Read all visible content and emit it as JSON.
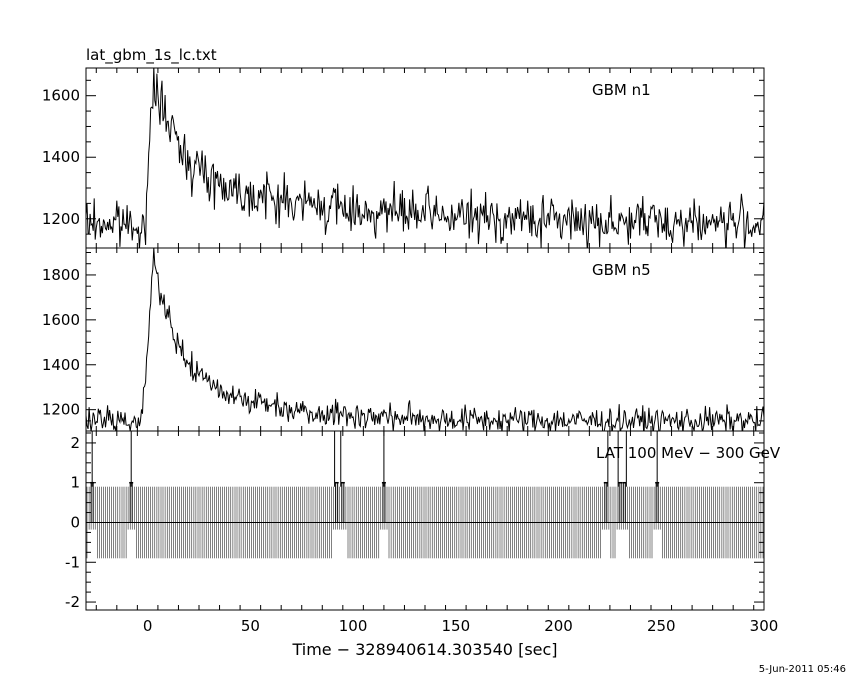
{
  "file_title": "lat_gbm_1s_lc.txt",
  "date_stamp": "5-Jun-2011 05:46",
  "chart_data": {
    "type": "line",
    "xlabel": "Time − 328940614.303540 [sec]",
    "xlim": [
      -30,
      300
    ],
    "x_ticks": [
      0,
      50,
      100,
      150,
      200,
      250,
      300
    ],
    "panels": [
      {
        "label": "GBM n1",
        "ylim": [
          1105,
          1690
        ],
        "y_ticks": [
          1200,
          1400,
          1600
        ],
        "baseline": 1185,
        "noise": 38,
        "peak": {
          "t_peak": 3,
          "t_start": -1,
          "amplitude": 470,
          "decay": [
            12,
            70
          ],
          "decay_weights": [
            0.62,
            0.38
          ]
        }
      },
      {
        "label": "GBM n5",
        "ylim": [
          1105,
          1920
        ],
        "y_ticks": [
          1200,
          1400,
          1600,
          1800
        ],
        "baseline": 1150,
        "noise": 30,
        "peak": {
          "t_peak": 3,
          "t_start": -3,
          "amplitude": 730,
          "decay": [
            9,
            40
          ],
          "decay_weights": [
            0.6,
            0.4
          ]
        }
      },
      {
        "label": "LAT 100 MeV − 300 GeV",
        "ylim": [
          -2.2,
          2.3
        ],
        "y_ticks": [
          -2,
          -1,
          0,
          1,
          2
        ],
        "band_upper": 0.9,
        "band_lower": -0.9,
        "zero_line": 0,
        "events": [
          {
            "t": -27,
            "value": 1
          },
          {
            "t": -8,
            "value": 1
          },
          {
            "t": 92,
            "value": 1
          },
          {
            "t": 95,
            "value": 1
          },
          {
            "t": 115,
            "value": 1
          },
          {
            "t": 223,
            "value": 1
          },
          {
            "t": 230,
            "value": 1
          },
          {
            "t": 232,
            "value": 1
          },
          {
            "t": 248,
            "value": 1
          }
        ],
        "spikes": [
          {
            "t": -27,
            "value": 2.3
          },
          {
            "t": -8,
            "value": 2.3
          },
          {
            "t": 91,
            "value": 2.3
          },
          {
            "t": 94,
            "value": 2.3
          },
          {
            "t": 115,
            "value": 2.3
          },
          {
            "t": 224,
            "value": 2.3
          },
          {
            "t": 229,
            "value": 2.3
          },
          {
            "t": 233,
            "value": 2.3
          },
          {
            "t": 248,
            "value": 2.3
          }
        ]
      }
    ]
  }
}
